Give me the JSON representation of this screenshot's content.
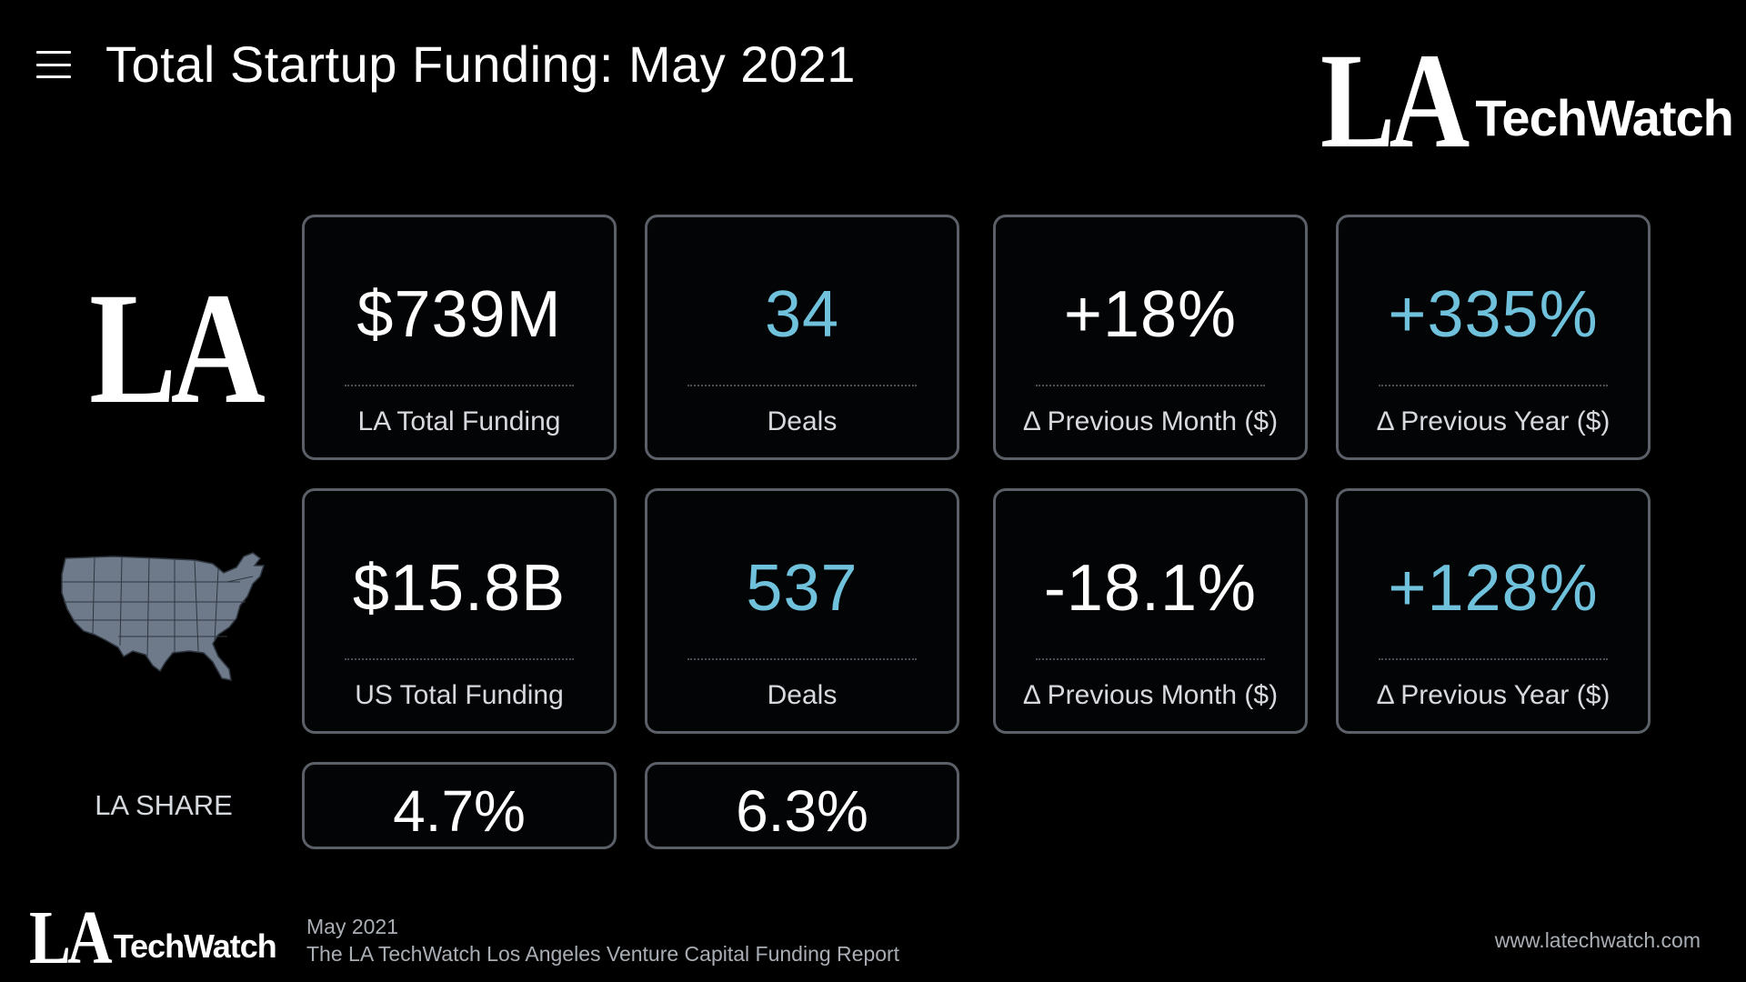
{
  "header": {
    "title": "Total Startup Funding: May 2021",
    "menu_icon": "hamburger-menu-icon"
  },
  "logo": {
    "mark": "LA",
    "word": "TechWatch"
  },
  "row_la": {
    "mark": "LA",
    "cards": [
      {
        "value": "$739M",
        "label": "LA Total Funding",
        "color": "#ffffff"
      },
      {
        "value": "34",
        "label": "Deals",
        "color": "#6fc1dc"
      },
      {
        "value": "+18%",
        "label": "Δ Previous Month ($)",
        "color": "#ffffff"
      },
      {
        "value": "+335%",
        "label": "Δ Previous Year ($)",
        "color": "#6fc1dc"
      }
    ]
  },
  "row_us": {
    "map_icon": "usa-map-icon",
    "cards": [
      {
        "value": "$15.8B",
        "label": "US Total Funding",
        "color": "#ffffff"
      },
      {
        "value": "537",
        "label": "Deals",
        "color": "#6fc1dc"
      },
      {
        "value": "-18.1%",
        "label": "Δ Previous Month ($)",
        "color": "#ffffff"
      },
      {
        "value": "+128%",
        "label": "Δ Previous Year ($)",
        "color": "#6fc1dc"
      }
    ]
  },
  "la_share": {
    "label": "LA SHARE",
    "funding_share": "4.7%",
    "deals_share": "6.3%"
  },
  "footer": {
    "date": "May 2021",
    "report": "The LA TechWatch Los Angeles Venture Capital Funding Report",
    "url": "www.latechwatch.com"
  },
  "colors": {
    "background": "#000000",
    "accent_blue": "#6fc1dc",
    "card_border": "#5b6068",
    "muted_text": "#a9aeb5"
  }
}
